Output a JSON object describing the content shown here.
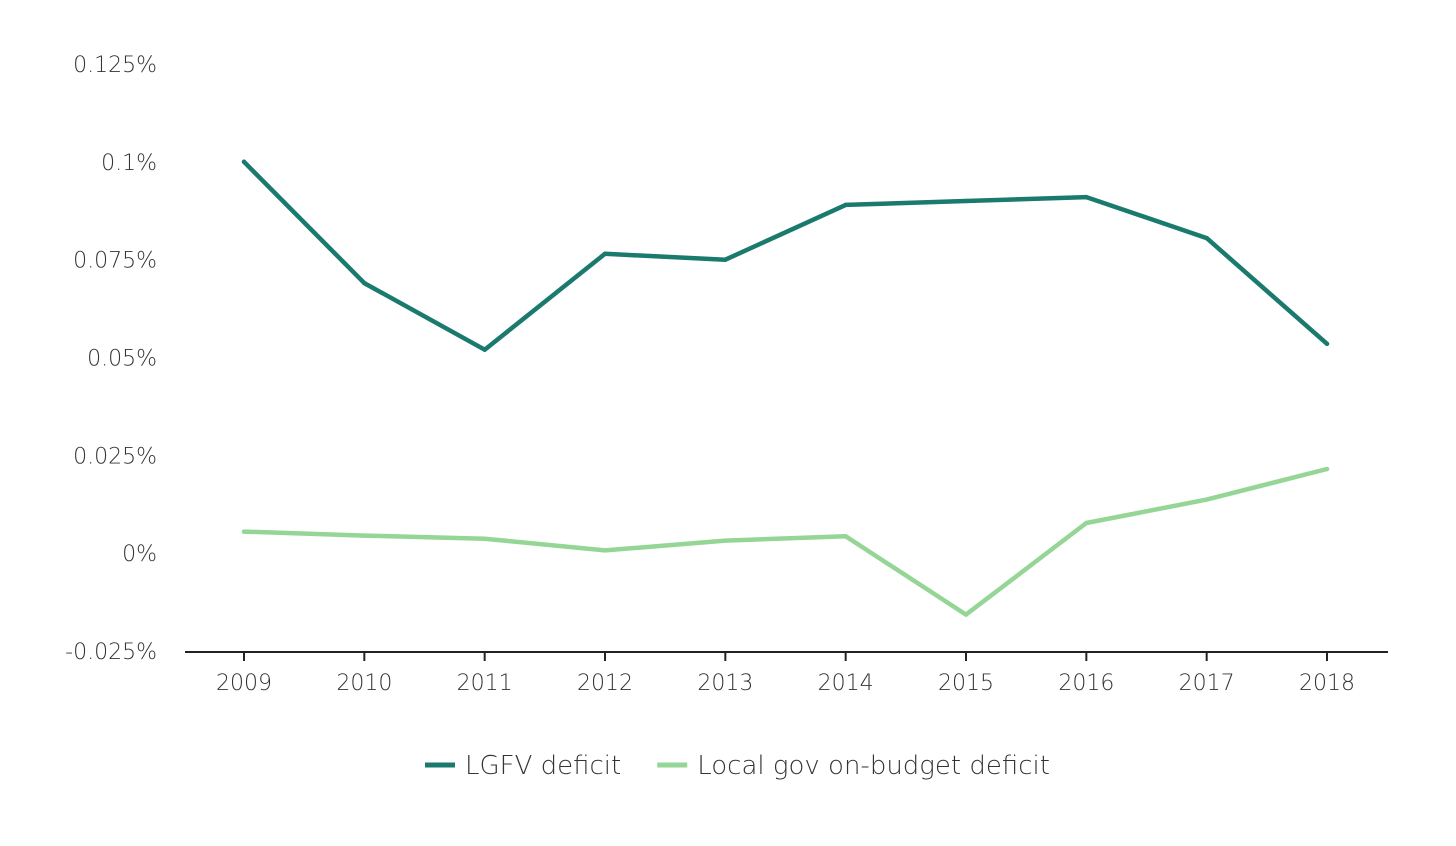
{
  "chart_data": {
    "type": "line",
    "title": "",
    "xlabel": "",
    "ylabel": "",
    "x": [
      "2009",
      "2010",
      "2011",
      "2012",
      "2013",
      "2014",
      "2015",
      "2016",
      "2017",
      "2018"
    ],
    "ylim": [
      -0.025,
      0.125
    ],
    "y_ticks": [
      {
        "value": 0.125,
        "label": "0.125%"
      },
      {
        "value": 0.1,
        "label": "0.1%"
      },
      {
        "value": 0.075,
        "label": "0.075%"
      },
      {
        "value": 0.05,
        "label": "0.05%"
      },
      {
        "value": 0.025,
        "label": "0.025%"
      },
      {
        "value": 0,
        "label": "0%"
      },
      {
        "value": -0.025,
        "label": "-0.025%"
      }
    ],
    "grid": false,
    "legend": "bottom-center",
    "series": [
      {
        "name": "LGFV deficit",
        "color": "#1a7a6e",
        "values": [
          0.1,
          0.069,
          0.052,
          0.0765,
          0.075,
          0.089,
          0.09,
          0.091,
          0.0805,
          0.0535
        ]
      },
      {
        "name": "Local gov on-budget deficit",
        "color": "#95d596",
        "values": [
          0.0055,
          0.0045,
          0.0037,
          0.0007,
          0.0032,
          0.0043,
          -0.0157,
          0.0077,
          0.0137,
          0.0215
        ]
      }
    ]
  }
}
